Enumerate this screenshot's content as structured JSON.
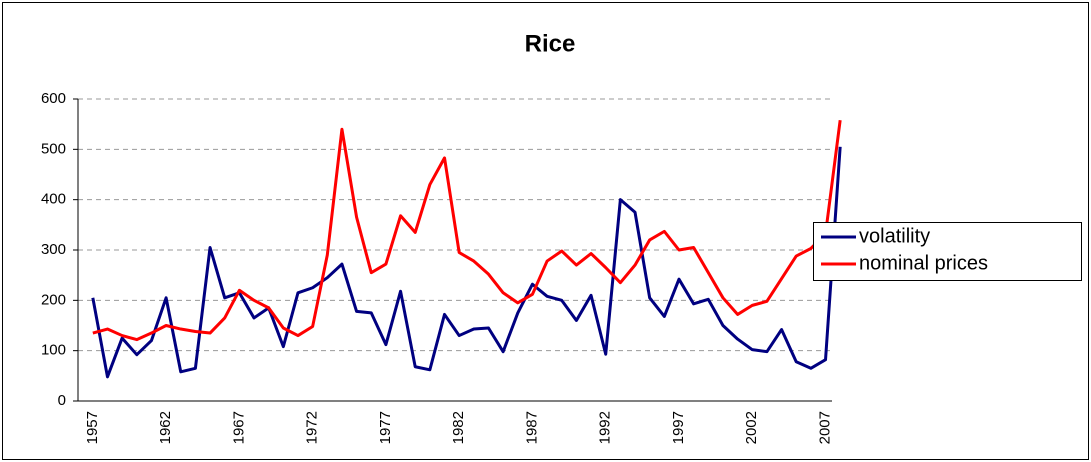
{
  "chart_data": {
    "type": "line",
    "title": "Rice",
    "categories": [
      "1957",
      null,
      null,
      null,
      null,
      "1962",
      null,
      null,
      null,
      null,
      "1967",
      null,
      null,
      null,
      null,
      "1972",
      null,
      null,
      null,
      null,
      "1977",
      null,
      null,
      null,
      null,
      "1982",
      null,
      null,
      null,
      null,
      "1987",
      null,
      null,
      null,
      null,
      "1992",
      null,
      null,
      null,
      null,
      "1997",
      null,
      null,
      null,
      null,
      "2002",
      null,
      null,
      null,
      null,
      "2007",
      null
    ],
    "series": [
      {
        "name": "volatility",
        "color": "#000080",
        "values": [
          205,
          48,
          125,
          92,
          120,
          205,
          58,
          65,
          305,
          205,
          215,
          165,
          185,
          108,
          215,
          225,
          245,
          272,
          178,
          175,
          112,
          218,
          68,
          62,
          172,
          130,
          143,
          145,
          98,
          175,
          232,
          208,
          200,
          160,
          210,
          93,
          400,
          375,
          205,
          168,
          242,
          193,
          202,
          150,
          123,
          102,
          98,
          142,
          78,
          65,
          82,
          505
        ]
      },
      {
        "name": "nominal prices",
        "color": "#ff0000",
        "values": [
          135,
          143,
          130,
          122,
          135,
          150,
          143,
          138,
          135,
          165,
          220,
          200,
          185,
          145,
          130,
          148,
          290,
          540,
          365,
          255,
          272,
          368,
          335,
          430,
          483,
          295,
          278,
          252,
          215,
          195,
          212,
          278,
          298,
          270,
          293,
          265,
          235,
          270,
          320,
          337,
          300,
          305,
          255,
          205,
          172,
          190,
          198,
          243,
          288,
          303,
          332,
          558
        ]
      }
    ],
    "ylim": [
      0,
      600
    ],
    "yticks": [
      0,
      100,
      200,
      300,
      400,
      500,
      600
    ],
    "grid": true,
    "legend": "right"
  }
}
